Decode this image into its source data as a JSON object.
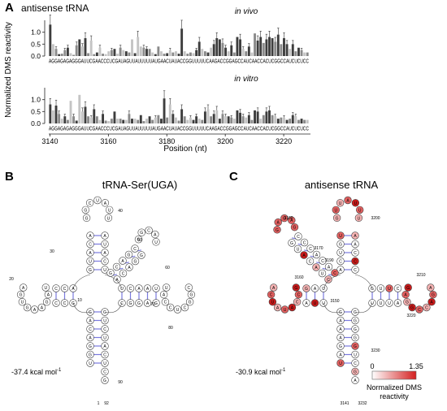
{
  "panel_a": {
    "letter": "A",
    "title": "antisense tRNA",
    "ylabel": "Normalized DMS reactivity",
    "xlabel": "Position (nt)",
    "x_ticks": [
      "3140",
      "3160",
      "3180",
      "3200",
      "3220"
    ],
    "y_ticks": [
      "0.0",
      "0.5",
      "1.0"
    ],
    "sequence": "AGGAGAGAGGGAUUCGAACCCUCGAUAGUUAUUUUUAUGAACUAUACCGGUUUUUCAAGACCGGAGCCAUCAACCACUCGGCCAUCUCUCC",
    "top_label": "in vivo",
    "bottom_label": "in  vitro",
    "chart_data": [
      {
        "type": "bar",
        "title": "in vivo",
        "xlabel": "Position (nt)",
        "ylabel": "Normalized DMS reactivity",
        "x_start": 3140,
        "ylim": [
          0,
          1.5
        ],
        "values": [
          1.32,
          0.5,
          0.3,
          0.08,
          0.1,
          0.25,
          0.35,
          0.12,
          0.05,
          0.45,
          0.7,
          0.4,
          0.75,
          0.12,
          0.65,
          0.08,
          0.15,
          0.35,
          0.1,
          0.08,
          0.2,
          0.25,
          0.3,
          0.1,
          0.35,
          0.25,
          0.2,
          0.15,
          0.7,
          0.12,
          0.8,
          0.4,
          0.35,
          0.3,
          0.3,
          0.15,
          0.08,
          0.4,
          0.2,
          0.1,
          0.12,
          0.25,
          0.15,
          0.2,
          0.1,
          1.15,
          0.2,
          0.1,
          0.15,
          0.12,
          0.25,
          0.6,
          0.3,
          0.2,
          0.15,
          0.35,
          0.5,
          0.75,
          0.7,
          0.55,
          0.35,
          0.2,
          0.45,
          0.15,
          0.8,
          0.7,
          0.3,
          0.2,
          0.4,
          0.15,
          0.95,
          0.65,
          0.8,
          0.55,
          0.7,
          0.8,
          0.75,
          0.6,
          0.9,
          0.5,
          0.75,
          0.5,
          0.3,
          0.5,
          0.2,
          0.35,
          0.25,
          0.15,
          0.15
        ],
        "shades": [
          2,
          0,
          1,
          2,
          1,
          1,
          2,
          0,
          1,
          1,
          2,
          0,
          2,
          1,
          0,
          1,
          2,
          0,
          1,
          0,
          0,
          1,
          2,
          0,
          1,
          0,
          2,
          1,
          0,
          2,
          0,
          0,
          1,
          2,
          1,
          0,
          2,
          1,
          0,
          1,
          2,
          0,
          1,
          0,
          2,
          2,
          0,
          1,
          1,
          0,
          2,
          2,
          0,
          1,
          2,
          0,
          2,
          2,
          2,
          1,
          2,
          0,
          2,
          1,
          2,
          2,
          0,
          1,
          2,
          0,
          1,
          2,
          2,
          1,
          2,
          2,
          2,
          1,
          2,
          1,
          2,
          2,
          0,
          2,
          1,
          2,
          1,
          0,
          1
        ]
      },
      {
        "type": "bar",
        "title": "in  vitro",
        "xlabel": "Position (nt)",
        "ylabel": "Normalized DMS reactivity",
        "x_start": 3140,
        "ylim": [
          0,
          1.5
        ],
        "values": [
          0.8,
          0.55,
          0.75,
          0.4,
          0.2,
          0.3,
          0.15,
          0.95,
          0.3,
          0.12,
          1.2,
          0.5,
          0.7,
          0.3,
          0.25,
          0.6,
          0.3,
          0.15,
          0.4,
          0.12,
          0.1,
          0.2,
          0.5,
          0.2,
          0.2,
          0.15,
          0.15,
          0.4,
          0.2,
          0.2,
          0.15,
          0.35,
          0.1,
          0.2,
          0.3,
          0.15,
          0.25,
          0.35,
          0.2,
          1.05,
          0.25,
          0.8,
          0.4,
          0.25,
          0.12,
          0.6,
          0.3,
          0.15,
          0.25,
          0.15,
          0.3,
          0.2,
          0.15,
          0.5,
          0.6,
          0.3,
          0.4,
          0.55,
          0.2,
          0.4,
          0.3,
          0.3,
          0.25,
          0.2,
          0.55,
          0.45,
          0.3,
          0.25,
          0.35,
          0.15,
          0.55,
          0.5,
          0.2,
          0.35,
          0.5,
          0.55,
          0.35,
          0.3,
          0.2,
          0.25,
          0.25,
          0.15,
          0.2,
          0.35,
          0.3,
          0.15,
          0.2,
          0.15,
          0.15
        ],
        "shades": [
          2,
          0,
          2,
          1,
          0,
          2,
          1,
          0,
          1,
          2,
          0,
          0,
          2,
          1,
          0,
          2,
          1,
          0,
          2,
          1,
          0,
          1,
          2,
          0,
          1,
          2,
          0,
          1,
          2,
          0,
          1,
          2,
          1,
          0,
          2,
          1,
          0,
          1,
          2,
          2,
          1,
          0,
          2,
          0,
          1,
          2,
          1,
          0,
          0,
          2,
          2,
          0,
          1,
          2,
          0,
          1,
          2,
          0,
          2,
          1,
          0,
          2,
          1,
          0,
          2,
          2,
          1,
          0,
          2,
          1,
          2,
          2,
          0,
          1,
          2,
          2,
          1,
          0,
          2,
          1,
          0,
          2,
          1,
          2,
          0,
          1,
          2,
          1,
          0
        ]
      }
    ]
  },
  "panel_b": {
    "letter": "B",
    "title": "tRNA-Ser(UGA)",
    "energy": "-37.4 kcal mol",
    "energy_sup": "-1",
    "numbers": [
      "10",
      "20",
      "30",
      "40",
      "50",
      "60",
      "70",
      "80",
      "90",
      "1",
      "92"
    ]
  },
  "panel_c": {
    "letter": "C",
    "title": "antisense tRNA",
    "energy": "-30.9 kcal mol",
    "energy_sup": "-1",
    "numbers": [
      "3141",
      "3150",
      "3160",
      "3170",
      "3180",
      "3190",
      "3200",
      "3210",
      "3220",
      "3230",
      "3232"
    ],
    "legend": {
      "min": "0",
      "max": "1.35",
      "label_line1": "Normalized DMS",
      "label_line2": "reactivity"
    }
  },
  "colors": {
    "dark": "#3d3d3d",
    "mid": "#8a8a8a",
    "light": "#c4c4c4",
    "pair": "#7a7adf",
    "react": "#d42020"
  }
}
